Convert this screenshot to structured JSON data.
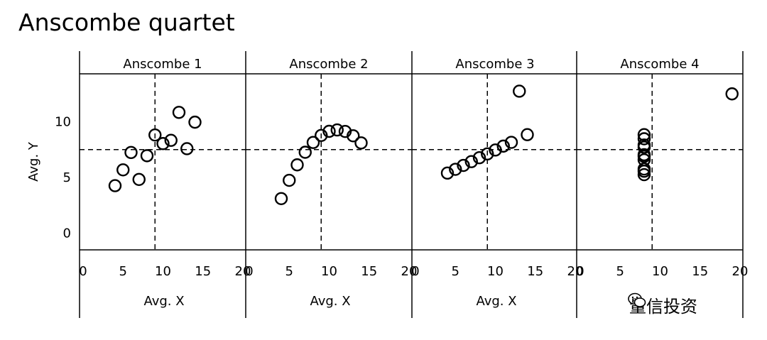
{
  "title": "Anscombe quartet",
  "ytitle": "Avg. Y",
  "xtitle": "Avg. X",
  "xticks": [
    "0",
    "5",
    "10",
    "15",
    "20"
  ],
  "yticks": [
    "0",
    "5",
    "10"
  ],
  "watermark": "量信投资",
  "chart_data": [
    {
      "type": "scatter",
      "facet": "Anscombe 1",
      "xlabel": "Avg. X",
      "ylabel": "Avg. Y",
      "xlim": [
        0,
        20
      ],
      "ylim": [
        -1.5,
        14.3
      ],
      "mean_x": 9,
      "mean_y": 7.5,
      "x": [
        10,
        8,
        13,
        9,
        11,
        14,
        6,
        4,
        12,
        7,
        5
      ],
      "y": [
        8.04,
        6.95,
        7.58,
        8.81,
        8.33,
        9.96,
        7.24,
        4.26,
        10.84,
        4.82,
        5.68
      ]
    },
    {
      "type": "scatter",
      "facet": "Anscombe 2",
      "xlabel": "Avg. X",
      "ylabel": "Avg. Y",
      "xlim": [
        0,
        20
      ],
      "ylim": [
        -1.5,
        14.3
      ],
      "mean_x": 9,
      "mean_y": 7.5,
      "x": [
        10,
        8,
        13,
        9,
        11,
        14,
        6,
        4,
        12,
        7,
        5
      ],
      "y": [
        9.14,
        8.14,
        8.74,
        8.77,
        9.26,
        8.1,
        6.13,
        3.1,
        9.13,
        7.26,
        4.74
      ]
    },
    {
      "type": "scatter",
      "facet": "Anscombe 3",
      "xlabel": "Avg. X",
      "ylabel": "Avg. Y",
      "xlim": [
        0,
        20
      ],
      "ylim": [
        -1.5,
        14.3
      ],
      "mean_x": 9,
      "mean_y": 7.5,
      "x": [
        10,
        8,
        13,
        9,
        11,
        14,
        6,
        4,
        12,
        7,
        5
      ],
      "y": [
        7.46,
        6.77,
        12.74,
        7.11,
        7.81,
        8.84,
        6.08,
        5.39,
        8.15,
        6.42,
        5.73
      ]
    },
    {
      "type": "scatter",
      "facet": "Anscombe 4",
      "xlabel": "Avg. X",
      "ylabel": "Avg. Y",
      "xlim": [
        0,
        20
      ],
      "ylim": [
        -1.5,
        14.3
      ],
      "mean_x": 9,
      "mean_y": 7.5,
      "x": [
        8,
        8,
        8,
        8,
        8,
        8,
        8,
        19,
        8,
        8,
        8
      ],
      "y": [
        6.58,
        5.76,
        7.71,
        8.84,
        8.47,
        7.04,
        5.25,
        12.5,
        5.56,
        7.91,
        6.89
      ]
    }
  ]
}
